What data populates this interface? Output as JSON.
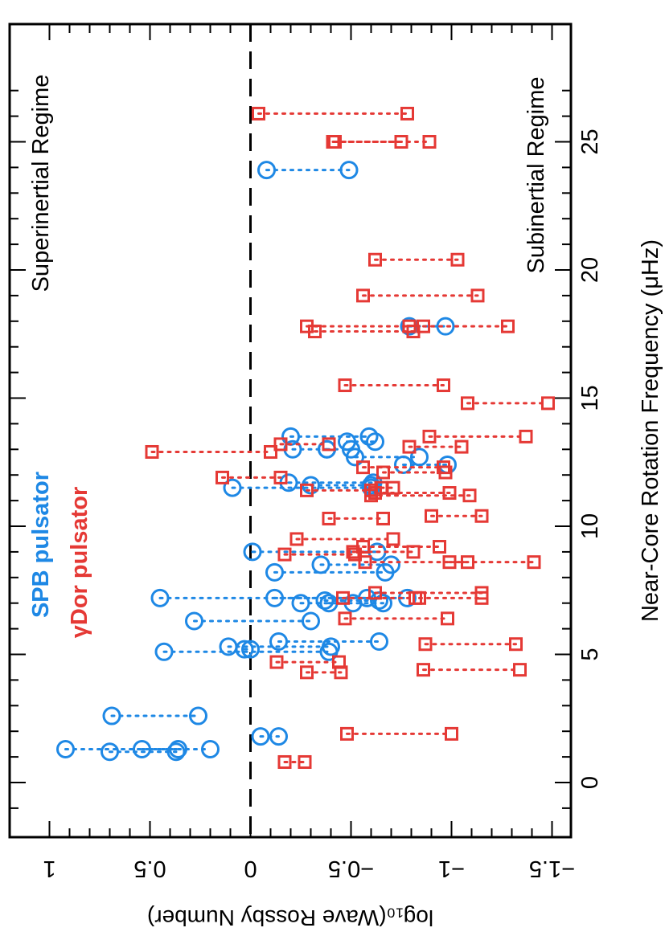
{
  "chart_data": {
    "type": "scatter",
    "xlabel": "Near-Core Rotation Frequency (μHz)",
    "ylabel": "log₁₀(Wave Rossby Number)",
    "xlim": [
      -2,
      28
    ],
    "ylim": [
      1.2,
      -1.6
    ],
    "x_ticks": [
      0,
      5,
      10,
      15,
      20,
      25
    ],
    "x_tick_labels": [
      "0",
      "5",
      "10",
      "15",
      "20",
      "25"
    ],
    "y_ticks": [
      1,
      0.5,
      0,
      -0.5,
      -1,
      -1.5
    ],
    "y_tick_labels": [
      "1",
      "0.5",
      "0",
      "−0.5",
      "−1",
      "−1.5"
    ],
    "reference_line": {
      "y": 0,
      "style": "dashed",
      "color": "#000000"
    },
    "annotations": {
      "superinertial": "Superinertial Regime",
      "subinertial": "Subinertial Regime"
    },
    "legend_labels": {
      "spb": "SPB pulsator",
      "gdor_symbol": "γ",
      "gdor_text": "Dor pulsator"
    },
    "series": [
      {
        "name": "SPB pulsator",
        "marker": "circle",
        "color": "#1e88e5",
        "pairs": [
          {
            "x": 1.3,
            "y": [
              0.92,
              0.2
            ]
          },
          {
            "x": 1.2,
            "y": [
              0.7,
              0.37
            ]
          },
          {
            "x": 1.3,
            "y": [
              0.54,
              0.36
            ]
          },
          {
            "x": 2.6,
            "y": [
              0.69,
              0.26
            ]
          },
          {
            "x": 1.8,
            "y": [
              -0.05,
              -0.14
            ]
          },
          {
            "x": 5.1,
            "y": [
              0.43,
              -0.39
            ]
          },
          {
            "x": 5.3,
            "y": [
              0.11,
              -0.4
            ]
          },
          {
            "x": 5.2,
            "y": [
              0.03,
              0.0
            ]
          },
          {
            "x": 5.5,
            "y": [
              -0.14,
              -0.64
            ]
          },
          {
            "x": 6.3,
            "y": [
              0.28,
              -0.3
            ]
          },
          {
            "x": 7.2,
            "y": [
              0.45,
              -0.78
            ]
          },
          {
            "x": 7.2,
            "y": [
              -0.12,
              -0.58
            ]
          },
          {
            "x": 7.0,
            "y": [
              -0.25,
              -0.66
            ]
          },
          {
            "x": 7.1,
            "y": [
              -0.37,
              -0.64
            ]
          },
          {
            "x": 7.0,
            "y": [
              -0.39,
              -0.51
            ]
          },
          {
            "x": 8.2,
            "y": [
              -0.12,
              -0.67
            ]
          },
          {
            "x": 8.5,
            "y": [
              -0.35,
              -0.7
            ]
          },
          {
            "x": 9.0,
            "y": [
              -0.01,
              -0.63
            ]
          },
          {
            "x": 11.5,
            "y": [
              0.09,
              -0.6
            ]
          },
          {
            "x": 11.7,
            "y": [
              -0.19,
              -0.61
            ]
          },
          {
            "x": 11.6,
            "y": [
              -0.3,
              -0.6
            ]
          },
          {
            "x": 13.5,
            "y": [
              -0.2,
              -0.59
            ]
          },
          {
            "x": 13.0,
            "y": [
              -0.21,
              -0.38
            ]
          },
          {
            "x": 13.3,
            "y": [
              -0.48,
              -0.62
            ]
          },
          {
            "x": 12.7,
            "y": [
              -0.52,
              -0.84
            ]
          },
          {
            "x": 12.4,
            "y": [
              -0.76,
              -0.98
            ]
          },
          {
            "x": 13.0,
            "y": [
              -0.38,
              -0.5
            ]
          },
          {
            "x": 17.8,
            "y": [
              -0.79,
              -0.97
            ]
          },
          {
            "x": 23.9,
            "y": [
              -0.08,
              -0.49
            ]
          }
        ]
      },
      {
        "name": "γDor pulsator",
        "marker": "square",
        "color": "#e53935",
        "pairs": [
          {
            "x": 0.8,
            "y": [
              -0.17,
              -0.27
            ]
          },
          {
            "x": 1.9,
            "y": [
              -0.48,
              -1.0
            ]
          },
          {
            "x": 4.3,
            "y": [
              -0.28,
              -0.45
            ]
          },
          {
            "x": 4.4,
            "y": [
              -0.86,
              -1.34
            ]
          },
          {
            "x": 4.7,
            "y": [
              -0.13,
              -0.44
            ]
          },
          {
            "x": 5.4,
            "y": [
              -0.87,
              -1.32
            ]
          },
          {
            "x": 6.4,
            "y": [
              -0.47,
              -0.98
            ]
          },
          {
            "x": 7.2,
            "y": [
              -0.46,
              -0.82
            ]
          },
          {
            "x": 7.2,
            "y": [
              -0.84,
              -1.15
            ]
          },
          {
            "x": 7.4,
            "y": [
              -0.62,
              -1.15
            ]
          },
          {
            "x": 8.6,
            "y": [
              -0.57,
              -1.08
            ]
          },
          {
            "x": 8.6,
            "y": [
              -0.99,
              -1.41
            ]
          },
          {
            "x": 8.9,
            "y": [
              -0.17,
              -0.52
            ]
          },
          {
            "x": 9.0,
            "y": [
              -0.51,
              -0.81
            ]
          },
          {
            "x": 9.2,
            "y": [
              -0.56,
              -0.94
            ]
          },
          {
            "x": 9.5,
            "y": [
              -0.23,
              -0.71
            ]
          },
          {
            "x": 10.3,
            "y": [
              -0.39,
              -0.66
            ]
          },
          {
            "x": 10.4,
            "y": [
              -0.9,
              -1.15
            ]
          },
          {
            "x": 11.2,
            "y": [
              -0.6,
              -1.09
            ]
          },
          {
            "x": 11.3,
            "y": [
              -0.62,
              -0.99
            ]
          },
          {
            "x": 11.4,
            "y": [
              -0.28,
              -0.6
            ]
          },
          {
            "x": 11.5,
            "y": [
              -0.65,
              -0.71
            ]
          },
          {
            "x": 11.9,
            "y": [
              0.14,
              -0.15
            ]
          },
          {
            "x": 12.1,
            "y": [
              -0.66,
              -0.97
            ]
          },
          {
            "x": 12.3,
            "y": [
              -0.56,
              -0.96
            ]
          },
          {
            "x": 12.9,
            "y": [
              0.49,
              -0.1
            ]
          },
          {
            "x": 13.2,
            "y": [
              -0.15,
              -0.39
            ]
          },
          {
            "x": 13.1,
            "y": [
              -0.79,
              -1.05
            ]
          },
          {
            "x": 13.5,
            "y": [
              -0.89,
              -1.37
            ]
          },
          {
            "x": 14.8,
            "y": [
              -1.08,
              -1.48
            ]
          },
          {
            "x": 15.5,
            "y": [
              -0.47,
              -0.96
            ]
          },
          {
            "x": 17.6,
            "y": [
              -0.32,
              -0.81
            ]
          },
          {
            "x": 17.8,
            "y": [
              -0.28,
              -0.79
            ]
          },
          {
            "x": 17.8,
            "y": [
              -0.86,
              -1.28
            ]
          },
          {
            "x": 19.0,
            "y": [
              -0.56,
              -1.13
            ]
          },
          {
            "x": 20.4,
            "y": [
              -0.62,
              -1.03
            ]
          },
          {
            "x": 25.0,
            "y": [
              -0.41,
              -0.75
            ]
          },
          {
            "x": 25.0,
            "y": [
              -0.42,
              -0.89
            ]
          },
          {
            "x": 26.1,
            "y": [
              -0.04,
              -0.78
            ]
          }
        ]
      }
    ]
  }
}
